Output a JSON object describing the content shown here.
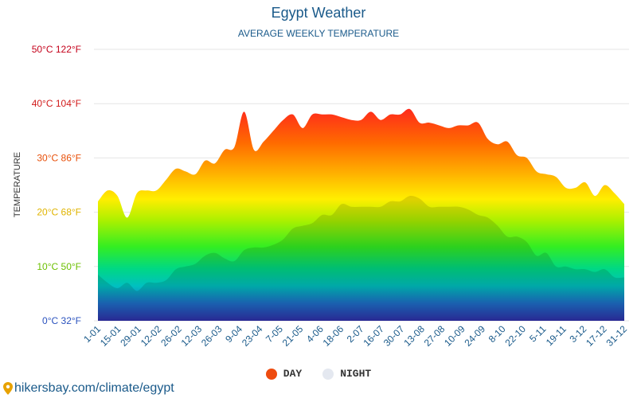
{
  "title": "Egypt Weather",
  "subtitle": "AVERAGE WEEKLY TEMPERATURE",
  "source": "hikersbay.com/climate/egypt",
  "legend": [
    {
      "label": "DAY",
      "color": "#ee4b0f"
    },
    {
      "label": "NIGHT",
      "color": "#e4e8f0"
    }
  ],
  "chart_data": {
    "type": "area",
    "title": "Egypt Weather",
    "subtitle": "AVERAGE WEEKLY TEMPERATURE",
    "ylabel": "TEMPERATURE",
    "ylim": [
      0,
      50
    ],
    "y_ticks": [
      {
        "value": 0,
        "label": "0°C 32°F",
        "color": "#2a52be"
      },
      {
        "value": 10,
        "label": "10°C 50°F",
        "color": "#6bbf00"
      },
      {
        "value": 20,
        "label": "20°C 68°F",
        "color": "#e0b400"
      },
      {
        "value": 30,
        "label": "30°C 86°F",
        "color": "#e8500a"
      },
      {
        "value": 40,
        "label": "40°C 104°F",
        "color": "#d11a1a"
      },
      {
        "value": 50,
        "label": "50°C 122°F",
        "color": "#c4001a"
      }
    ],
    "x_labels": [
      "1-01",
      "15-01",
      "29-01",
      "12-02",
      "26-02",
      "12-03",
      "26-03",
      "9-04",
      "23-04",
      "7-05",
      "21-05",
      "4-06",
      "18-06",
      "2-07",
      "16-07",
      "30-07",
      "13-08",
      "27-08",
      "10-09",
      "24-09",
      "8-10",
      "22-10",
      "5-11",
      "19-11",
      "3-12",
      "17-12",
      "31-12"
    ],
    "grid": true,
    "legend_position": "bottom",
    "series": [
      {
        "name": "DAY",
        "values": [
          22,
          24,
          23,
          19,
          23.5,
          24,
          24,
          26,
          28,
          27.5,
          27,
          29.5,
          29,
          31.5,
          32,
          38.5,
          31.5,
          33,
          35,
          37,
          38,
          35.5,
          38,
          38,
          38,
          37.5,
          37,
          37,
          38.5,
          37,
          38,
          38,
          39,
          36.5,
          36.5,
          36,
          35.5,
          36,
          36,
          36.5,
          33.5,
          32.5,
          33,
          30.5,
          30,
          27.5,
          27,
          26.5,
          24.5,
          24.5,
          25.5,
          23,
          25,
          23.5,
          21.5
        ]
      },
      {
        "name": "NIGHT",
        "values": [
          8.5,
          7,
          6,
          7,
          5.5,
          7,
          7,
          7.5,
          9.5,
          10,
          10.5,
          12,
          12.5,
          11.5,
          11,
          13,
          13.5,
          13.5,
          14,
          15,
          17,
          17.5,
          18,
          19.5,
          19.5,
          21.5,
          21,
          21,
          21,
          21,
          22,
          22,
          23,
          22.5,
          21,
          21,
          21,
          21,
          20.5,
          19.5,
          19,
          17.5,
          15.5,
          15.5,
          14.5,
          12,
          12.5,
          10,
          10,
          9.5,
          9.5,
          9,
          9.5,
          8,
          8
        ]
      }
    ]
  }
}
